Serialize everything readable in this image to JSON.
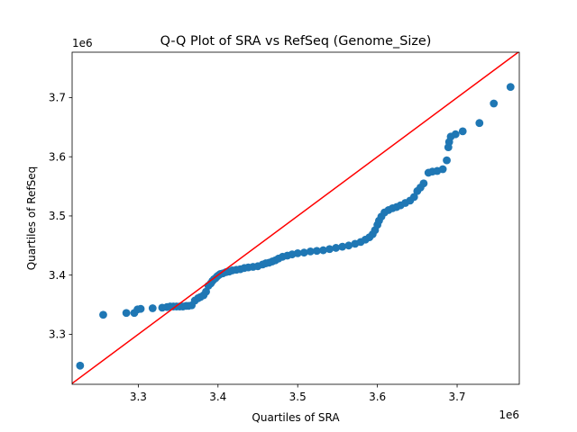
{
  "chart_data": {
    "type": "scatter",
    "title": "Q-Q Plot of SRA vs RefSeq (Genome_Size)",
    "xlabel": "Quartiles of SRA",
    "ylabel": "Quartiles of RefSeq",
    "x_offset_label": "1e6",
    "y_offset_label": "1e6",
    "xlim": [
      3.217,
      3.778
    ],
    "ylim": [
      3.2155,
      3.7767
    ],
    "x_ticks": [
      3.3,
      3.4,
      3.5,
      3.6,
      3.7
    ],
    "y_ticks": [
      3.3,
      3.4,
      3.5,
      3.6,
      3.7
    ],
    "x_tick_labels": [
      "3.3",
      "3.4",
      "3.5",
      "3.6",
      "3.7"
    ],
    "y_tick_labels": [
      "3.3",
      "3.4",
      "3.5",
      "3.6",
      "3.7"
    ],
    "grid": false,
    "marker_color": "#1f77b4",
    "reference_line": {
      "x": [
        3.217,
        3.778
      ],
      "y": [
        3.217,
        3.778
      ],
      "color": "#ff0000"
    },
    "points": {
      "x": [
        3.227,
        3.256,
        3.285,
        3.295,
        3.299,
        3.303,
        3.318,
        3.33,
        3.336,
        3.34,
        3.344,
        3.348,
        3.352,
        3.356,
        3.36,
        3.363,
        3.367,
        3.371,
        3.375,
        3.378,
        3.382,
        3.385,
        3.388,
        3.391,
        3.393,
        3.395,
        3.397,
        3.399,
        3.401,
        3.403,
        3.406,
        3.41,
        3.414,
        3.418,
        3.423,
        3.428,
        3.433,
        3.438,
        3.444,
        3.45,
        3.456,
        3.46,
        3.464,
        3.468,
        3.472,
        3.476,
        3.481,
        3.487,
        3.493,
        3.5,
        3.508,
        3.516,
        3.524,
        3.532,
        3.54,
        3.548,
        3.556,
        3.564,
        3.572,
        3.579,
        3.585,
        3.59,
        3.594,
        3.597,
        3.6,
        3.602,
        3.605,
        3.609,
        3.614,
        3.619,
        3.624,
        3.629,
        3.635,
        3.641,
        3.646,
        3.65,
        3.654,
        3.658,
        3.664,
        3.669,
        3.675,
        3.682,
        3.687,
        3.689,
        3.69,
        3.692,
        3.698,
        3.707,
        3.728,
        3.746,
        3.767
      ],
      "y": [
        3.247,
        3.333,
        3.336,
        3.336,
        3.342,
        3.343,
        3.344,
        3.345,
        3.346,
        3.347,
        3.347,
        3.347,
        3.347,
        3.347,
        3.348,
        3.348,
        3.349,
        3.357,
        3.361,
        3.363,
        3.366,
        3.372,
        3.382,
        3.386,
        3.39,
        3.393,
        3.395,
        3.398,
        3.4,
        3.402,
        3.403,
        3.405,
        3.406,
        3.408,
        3.409,
        3.41,
        3.412,
        3.413,
        3.414,
        3.415,
        3.418,
        3.42,
        3.421,
        3.423,
        3.425,
        3.428,
        3.431,
        3.433,
        3.435,
        3.437,
        3.438,
        3.44,
        3.441,
        3.442,
        3.444,
        3.446,
        3.448,
        3.45,
        3.453,
        3.456,
        3.46,
        3.464,
        3.469,
        3.476,
        3.485,
        3.492,
        3.499,
        3.506,
        3.51,
        3.513,
        3.515,
        3.518,
        3.522,
        3.526,
        3.532,
        3.542,
        3.548,
        3.555,
        3.573,
        3.575,
        3.576,
        3.579,
        3.594,
        3.616,
        3.625,
        3.634,
        3.638,
        3.643,
        3.657,
        3.69,
        3.718
      ]
    }
  }
}
